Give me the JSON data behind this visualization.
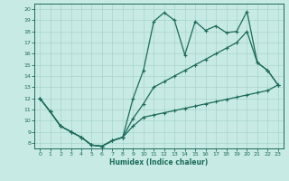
{
  "xlabel": "Humidex (Indice chaleur)",
  "bg_color": "#c8eae4",
  "grid_color": "#a8d4cc",
  "line_color": "#1a6b5a",
  "xlim": [
    -0.5,
    23.5
  ],
  "ylim": [
    7.5,
    20.5
  ],
  "xticks": [
    0,
    1,
    2,
    3,
    4,
    5,
    6,
    7,
    8,
    9,
    10,
    11,
    12,
    13,
    14,
    15,
    16,
    17,
    18,
    19,
    20,
    21,
    22,
    23
  ],
  "yticks": [
    8,
    9,
    10,
    11,
    12,
    13,
    14,
    15,
    16,
    17,
    18,
    19,
    20
  ],
  "line1_x": [
    0,
    1,
    2,
    3,
    4,
    5,
    6,
    7,
    8,
    9,
    10,
    11,
    12,
    13,
    14,
    15,
    16,
    17,
    18,
    19,
    20,
    21,
    22,
    23
  ],
  "line1_y": [
    12.0,
    10.8,
    9.5,
    9.0,
    8.5,
    7.8,
    7.7,
    8.2,
    8.5,
    9.5,
    10.3,
    10.5,
    10.7,
    10.9,
    11.1,
    11.3,
    11.5,
    11.7,
    11.9,
    12.1,
    12.3,
    12.5,
    12.7,
    13.2
  ],
  "line2_x": [
    0,
    1,
    2,
    3,
    4,
    5,
    6,
    7,
    8,
    9,
    10,
    11,
    12,
    13,
    14,
    15,
    16,
    17,
    18,
    19,
    20,
    21,
    22,
    23
  ],
  "line2_y": [
    12.0,
    10.8,
    9.5,
    9.0,
    8.5,
    7.8,
    7.7,
    8.2,
    8.5,
    10.2,
    11.5,
    13.0,
    13.5,
    14.0,
    14.5,
    15.0,
    15.5,
    16.0,
    16.5,
    17.0,
    18.0,
    15.2,
    14.5,
    13.2
  ],
  "line3_x": [
    0,
    1,
    2,
    3,
    4,
    5,
    6,
    7,
    8,
    9,
    10,
    11,
    12,
    13,
    14,
    15,
    16,
    17,
    18,
    19,
    20,
    21,
    22,
    23
  ],
  "line3_y": [
    12.0,
    10.8,
    9.5,
    9.0,
    8.5,
    7.8,
    7.7,
    8.2,
    8.5,
    12.0,
    14.5,
    18.9,
    19.7,
    19.0,
    15.9,
    18.9,
    18.1,
    18.5,
    17.9,
    18.0,
    19.8,
    15.2,
    14.5,
    13.2
  ],
  "markersize": 3,
  "linewidth": 0.9
}
